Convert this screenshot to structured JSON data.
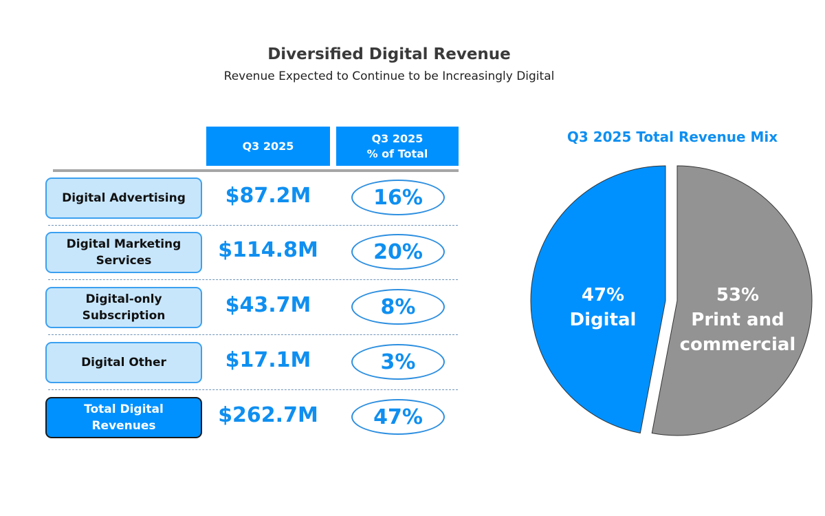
{
  "title": "Diversified Digital Revenue",
  "subtitle": "Revenue Expected to Continue to be Increasingly Digital",
  "table": {
    "headers": [
      "Q3 2025",
      "Q3 2025\n% of Total"
    ],
    "header_lines": [
      [
        "Q3 2025"
      ],
      [
        "Q3 2025",
        "% of Total"
      ]
    ],
    "rows": [
      {
        "label": [
          "Digital Advertising"
        ],
        "value": "$87.2M",
        "pct": "16%"
      },
      {
        "label": [
          "Digital Marketing",
          "Services"
        ],
        "value": "$114.8M",
        "pct": "20%"
      },
      {
        "label": [
          "Digital-only",
          "Subscription"
        ],
        "value": "$43.7M",
        "pct": "8%"
      },
      {
        "label": [
          "Digital Other"
        ],
        "value": "$17.1M",
        "pct": "3%"
      },
      {
        "label": [
          "Total Digital",
          "Revenues"
        ],
        "value": "$262.7M",
        "pct": "47%"
      }
    ]
  },
  "colors": {
    "accent": "#0091ff",
    "gray": "#939393",
    "label_bg": "#c7e6fc"
  },
  "chart_data": {
    "type": "pie",
    "title": "Q3 2025 Total Revenue Mix",
    "slices": [
      {
        "name": "Digital",
        "value": 47,
        "label_lines": [
          "47%",
          "Digital"
        ],
        "color": "#0091ff"
      },
      {
        "name": "Print and commercial",
        "value": 53,
        "label_lines": [
          "53%",
          "Print and",
          "commercial"
        ],
        "color": "#939393"
      }
    ]
  }
}
